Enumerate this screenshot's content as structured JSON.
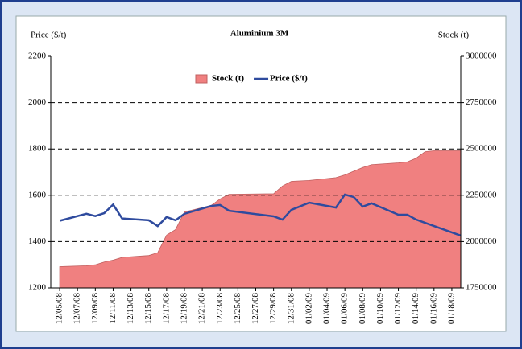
{
  "chart_data": {
    "type": "area-line",
    "title": "Aluminium 3M",
    "ylabel": "Price ($/t)",
    "y2label": "Stock (t)",
    "x": [
      "12/05/08",
      "12/08/08",
      "12/09/08",
      "12/10/08",
      "12/11/08",
      "12/12/08",
      "12/15/08",
      "12/16/08",
      "12/17/08",
      "12/18/08",
      "12/19/08",
      "12/22/08",
      "12/23/08",
      "12/24/08",
      "12/29/08",
      "12/30/08",
      "12/31/08",
      "01/02/09",
      "01/05/09",
      "01/06/09",
      "01/07/09",
      "01/08/09",
      "01/09/09",
      "01/12/09",
      "01/13/09",
      "01/14/09",
      "01/15/09",
      "01/16/09",
      "01/19/09"
    ],
    "xlim": [
      "12/04/08",
      "01/19/09"
    ],
    "xticks": [
      "12/05/08",
      "12/07/08",
      "12/09/08",
      "12/11/08",
      "12/13/08",
      "12/15/08",
      "12/17/08",
      "12/19/08",
      "12/21/08",
      "12/23/08",
      "12/25/08",
      "12/27/08",
      "12/29/08",
      "12/31/08",
      "01/02/09",
      "01/04/09",
      "01/06/09",
      "01/08/09",
      "01/10/09",
      "01/12/09",
      "01/14/09",
      "01/16/09",
      "01/18/09"
    ],
    "series": [
      {
        "name": "Stock (t)",
        "color": "#f08080",
        "axis": "y2",
        "kind": "area",
        "values": [
          1865000,
          1870000,
          1875000,
          1890000,
          1900000,
          1915000,
          1925000,
          1940000,
          2035000,
          2065000,
          2160000,
          2195000,
          2230000,
          2255000,
          2258000,
          2300000,
          2325000,
          2330000,
          2345000,
          2360000,
          2380000,
          2400000,
          2415000,
          2425000,
          2430000,
          2450000,
          2485000,
          2490000,
          2490000
        ]
      },
      {
        "name": "Price ($/t)",
        "color": "#2f4b9e",
        "axis": "y",
        "kind": "line",
        "values": [
          1490,
          1520,
          1510,
          1523,
          1560,
          1500,
          1492,
          1467,
          1506,
          1492,
          1520,
          1554,
          1558,
          1533,
          1509,
          1495,
          1537,
          1568,
          1547,
          1603,
          1592,
          1551,
          1565,
          1516,
          1516,
          1495,
          1481,
          1467,
          1426
        ]
      }
    ],
    "ylim": [
      1200,
      2200
    ],
    "yticks": [
      1200,
      1400,
      1600,
      1800,
      2000,
      2200
    ],
    "y2lim": [
      1750000,
      3000000
    ],
    "y2ticks": [
      1750000,
      2000000,
      2250000,
      2500000,
      2750000,
      3000000
    ],
    "grid": true,
    "legend": "top"
  }
}
